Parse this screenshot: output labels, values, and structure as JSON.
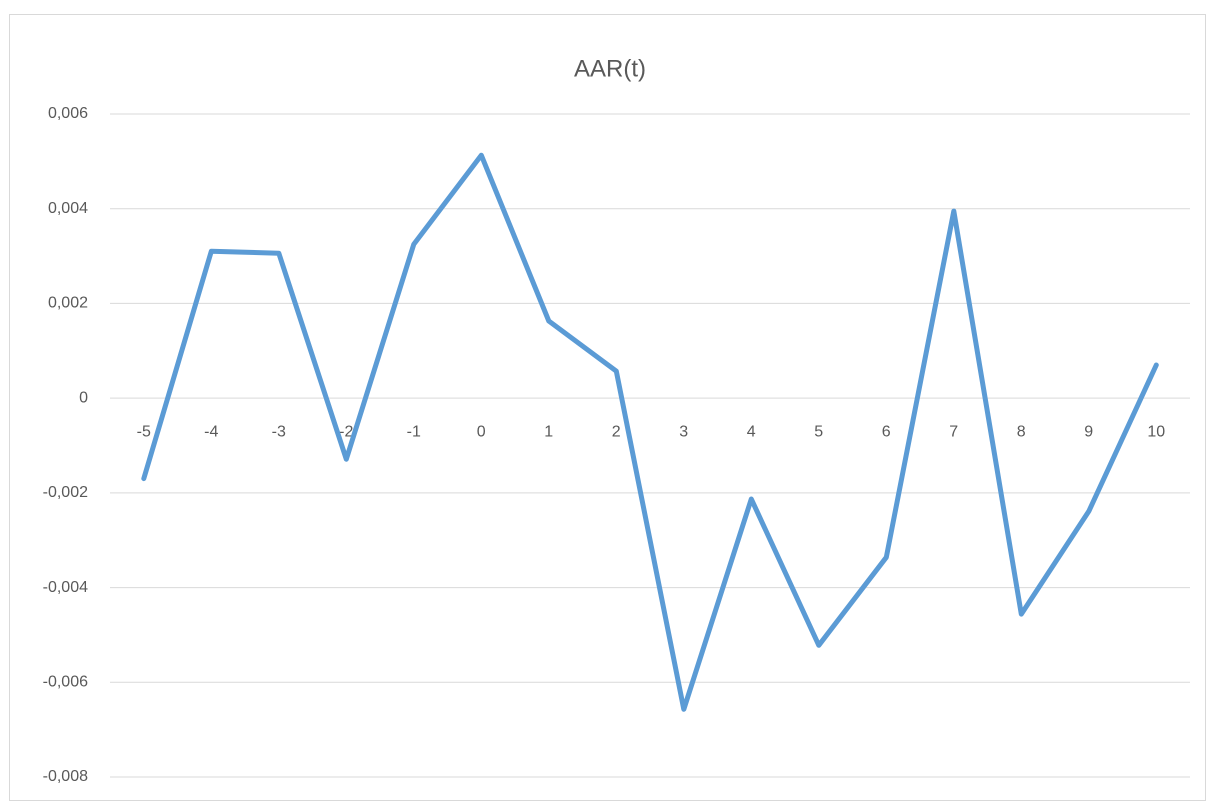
{
  "chart_data": {
    "type": "line",
    "title": "AAR(t)",
    "categories": [
      "-5",
      "-4",
      "-3",
      "-2",
      "-1",
      "0",
      "1",
      "2",
      "3",
      "4",
      "5",
      "6",
      "7",
      "8",
      "9",
      "10"
    ],
    "series": [
      {
        "name": "AAR(t)",
        "color": "#5b9bd5",
        "values": [
          -0.0017,
          0.0031,
          0.00306,
          -0.00129,
          0.00325,
          0.00513,
          0.00163,
          0.00057,
          -0.00657,
          -0.00213,
          -0.00522,
          -0.00336,
          0.00395,
          -0.00456,
          -0.00239,
          0.0007
        ]
      }
    ],
    "ylim": [
      -0.008,
      0.006
    ],
    "yticks": [
      {
        "value": -0.008,
        "label": "-0,008"
      },
      {
        "value": -0.006,
        "label": "-0,006"
      },
      {
        "value": -0.004,
        "label": "-0,004"
      },
      {
        "value": -0.002,
        "label": "-0,002"
      },
      0,
      {
        "value": 0.002,
        "label": "0,002"
      },
      {
        "value": 0.004,
        "label": "0,004"
      },
      {
        "value": 0.006,
        "label": "0,006"
      }
    ],
    "grid": true
  }
}
